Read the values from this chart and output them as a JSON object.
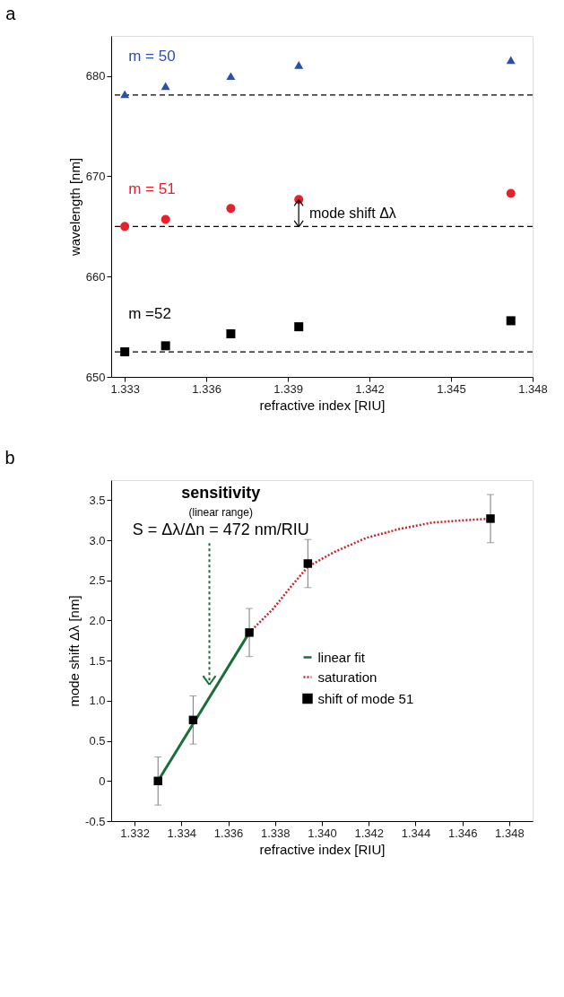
{
  "chart_data": [
    {
      "type": "scatter",
      "title": "a",
      "xlabel": "refractive index [RIU]",
      "ylabel": "wavelength [nm]",
      "xlim": [
        1.3325,
        1.348
      ],
      "ylim": [
        650,
        684
      ],
      "xticks": [
        1.333,
        1.336,
        1.339,
        1.342,
        1.345,
        1.348
      ],
      "yticks": [
        650,
        660,
        670,
        680
      ],
      "grid": false,
      "legend": false,
      "x": [
        1.333,
        1.3345,
        1.3369,
        1.3394,
        1.3472
      ],
      "series": [
        {
          "name": "m = 50",
          "color": "#2e4fa8",
          "marker": "triangle",
          "values": [
            678.2,
            679.0,
            680.0,
            681.1,
            681.6
          ]
        },
        {
          "name": "m = 51",
          "color": "#e8202a",
          "marker": "circle",
          "values": [
            665.0,
            665.7,
            666.8,
            667.7,
            668.3
          ]
        },
        {
          "name": "m =52",
          "color": "#000000",
          "marker": "square",
          "values": [
            652.5,
            653.1,
            654.3,
            655.0,
            655.6
          ]
        }
      ],
      "ref_lines": [
        {
          "axis": "y",
          "value": 678.1,
          "line_style": "dashed",
          "color": "#000000"
        },
        {
          "axis": "y",
          "value": 665.0,
          "line_style": "dashed",
          "color": "#000000"
        },
        {
          "axis": "y",
          "value": 652.5,
          "line_style": "dashed",
          "color": "#000000"
        }
      ],
      "annotations": [
        "mode shift Δλ"
      ]
    },
    {
      "type": "scatter",
      "title": "b",
      "xlabel": "refractive index [RIU]",
      "ylabel": "mode shift Δλ [nm]",
      "xlim": [
        1.331,
        1.349
      ],
      "ylim": [
        -0.5,
        3.75
      ],
      "xticks": [
        1.332,
        1.334,
        1.336,
        1.338,
        {
          "value": 1.34,
          "label": "1.340"
        },
        1.342,
        1.344,
        1.346,
        1.348
      ],
      "yticks": [
        {
          "value": -0.5,
          "label": "-0.5"
        },
        {
          "value": 0,
          "label": "0"
        },
        0.5,
        {
          "value": 1,
          "label": "1.0"
        },
        1.5,
        {
          "value": 2,
          "label": "2.0"
        },
        2.5,
        {
          "value": 3,
          "label": "3.0"
        },
        3.5
      ],
      "grid": false,
      "legend": "right",
      "series": [
        {
          "name": "linear fit",
          "type": "line",
          "line_style": "solid",
          "color": "#1a6e3a",
          "x": [
            1.333,
            1.3369
          ],
          "values": [
            0,
            1.85
          ]
        },
        {
          "name": "saturation",
          "type": "line",
          "line_style": "dotted",
          "color": "#d0202a",
          "x": [
            1.3369,
            1.3379,
            1.3387,
            1.3394,
            1.3405,
            1.3419,
            1.3433,
            1.3447,
            1.3461,
            1.3472
          ],
          "values": [
            1.85,
            2.14,
            2.43,
            2.67,
            2.85,
            3.03,
            3.14,
            3.22,
            3.25,
            3.27
          ]
        },
        {
          "name": "shift of mode 51",
          "type": "scatter",
          "marker": "square",
          "color": "#000000",
          "x": [
            1.333,
            1.3345,
            1.3369,
            1.3394,
            1.3472
          ],
          "values": [
            0,
            0.76,
            1.85,
            2.71,
            3.27
          ],
          "errors": [
            0.3,
            0.3,
            0.3,
            0.3,
            0.3
          ]
        }
      ],
      "annotations": [
        "sensitivity",
        "(linear range)",
        "S = Δλ/Δn = 472 nm/RIU"
      ]
    }
  ]
}
